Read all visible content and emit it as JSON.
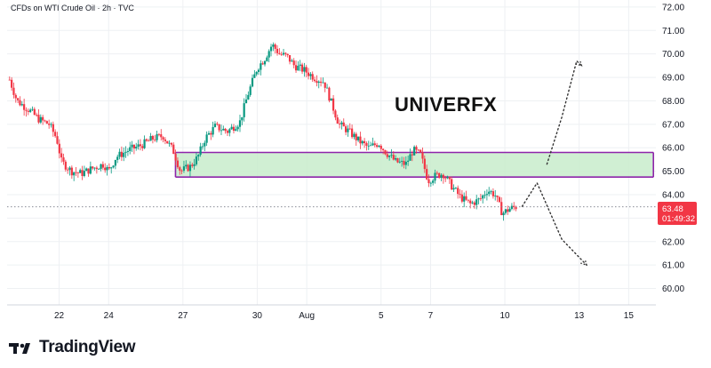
{
  "header": {
    "symbol_title": "CFDs on WTI Crude Oil · 2h · TVC"
  },
  "overlay_label": "UNIVERFX",
  "brand": {
    "name": "TradingView",
    "logo_icon": "tradingview-logo-icon"
  },
  "current_price": {
    "value": "63.48",
    "countdown": "01:49:32",
    "color": "#f23645"
  },
  "colors": {
    "up": "#089981",
    "down": "#f23645",
    "zone_fill": "#c8eccb",
    "zone_border": "#8e24aa",
    "projection": "#333333",
    "grid": "#eef0f3"
  },
  "chart_data": {
    "type": "candlestick",
    "title": "CFDs on WTI Crude Oil · 2h · TVC",
    "y_axis": {
      "position": "right",
      "ylim": [
        59.3,
        72.3
      ],
      "ticks": [
        "60.00",
        "61.00",
        "62.00",
        "63.00",
        "64.00",
        "65.00",
        "66.00",
        "67.00",
        "68.00",
        "69.00",
        "70.00",
        "71.00",
        "72.00"
      ]
    },
    "x_axis": {
      "xlim": [
        19.9,
        16.1
      ],
      "ticks": [
        {
          "label": "22",
          "x": 22
        },
        {
          "label": "24",
          "x": 24
        },
        {
          "label": "27",
          "x": 27
        },
        {
          "label": "30",
          "x": 30
        },
        {
          "label": "Aug",
          "x": 32
        },
        {
          "label": "5",
          "x": 35
        },
        {
          "label": "7",
          "x": 37
        },
        {
          "label": "10",
          "x": 40
        },
        {
          "label": "13",
          "x": 43
        },
        {
          "label": "15",
          "x": 45
        }
      ]
    },
    "grid": true,
    "price_path": [
      [
        20.0,
        68.9
      ],
      [
        20.3,
        68.0
      ],
      [
        20.8,
        67.6
      ],
      [
        21.2,
        67.2
      ],
      [
        21.6,
        67.0
      ],
      [
        21.9,
        66.4
      ],
      [
        22.1,
        65.4
      ],
      [
        22.5,
        65.0
      ],
      [
        22.9,
        64.9
      ],
      [
        23.3,
        65.1
      ],
      [
        23.8,
        65.3
      ],
      [
        24.0,
        65.0
      ],
      [
        24.3,
        65.6
      ],
      [
        24.8,
        65.9
      ],
      [
        25.3,
        66.1
      ],
      [
        25.8,
        66.4
      ],
      [
        26.2,
        66.5
      ],
      [
        26.6,
        65.9
      ],
      [
        26.9,
        65.0
      ],
      [
        27.3,
        65.2
      ],
      [
        27.6,
        65.6
      ],
      [
        27.9,
        66.4
      ],
      [
        28.3,
        66.9
      ],
      [
        28.8,
        66.7
      ],
      [
        29.3,
        67.1
      ],
      [
        29.6,
        68.2
      ],
      [
        30.0,
        69.4
      ],
      [
        30.3,
        69.8
      ],
      [
        30.6,
        70.4
      ],
      [
        30.9,
        70.0
      ],
      [
        31.2,
        69.9
      ],
      [
        31.5,
        69.5
      ],
      [
        31.9,
        69.3
      ],
      [
        32.3,
        69.0
      ],
      [
        32.7,
        68.8
      ],
      [
        33.0,
        67.9
      ],
      [
        33.3,
        67.0
      ],
      [
        33.7,
        66.7
      ],
      [
        34.1,
        66.3
      ],
      [
        34.5,
        66.0
      ],
      [
        34.9,
        66.2
      ],
      [
        35.2,
        65.8
      ],
      [
        35.6,
        65.4
      ],
      [
        36.0,
        65.3
      ],
      [
        36.3,
        65.9
      ],
      [
        36.6,
        65.7
      ],
      [
        36.9,
        64.6
      ],
      [
        37.2,
        64.8
      ],
      [
        37.5,
        64.9
      ],
      [
        37.9,
        64.3
      ],
      [
        38.2,
        63.9
      ],
      [
        38.6,
        63.6
      ],
      [
        39.0,
        63.8
      ],
      [
        39.3,
        64.2
      ],
      [
        39.6,
        64.0
      ],
      [
        39.9,
        63.2
      ],
      [
        40.2,
        63.4
      ],
      [
        40.45,
        63.48
      ]
    ],
    "zone": {
      "from_x": 26.7,
      "to_x": 46.0,
      "low": 64.75,
      "high": 65.8
    },
    "projections": [
      {
        "points": [
          [
            40.7,
            63.5
          ],
          [
            41.3,
            64.5
          ],
          [
            42.3,
            62.1
          ],
          [
            43.3,
            61.0
          ]
        ]
      },
      {
        "points": [
          [
            41.7,
            65.3
          ],
          [
            42.3,
            67.3
          ],
          [
            42.9,
            69.7
          ],
          [
            43.1,
            69.5
          ]
        ]
      }
    ],
    "current_price": 63.48
  }
}
